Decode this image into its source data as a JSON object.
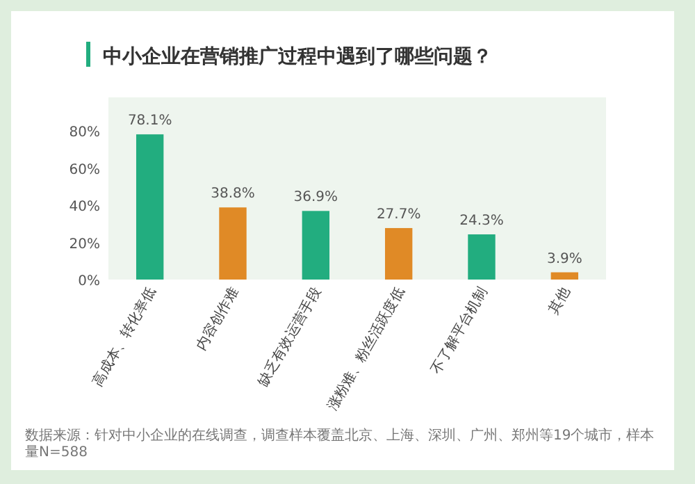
{
  "chart_data": {
    "type": "bar",
    "title": "中小企业在营销推广过程中遇到了哪些问题？",
    "categories": [
      "高成本、转化率低",
      "内容创作难",
      "缺乏有效运营手段",
      "涨粉难、粉丝活跃度低",
      "不了解平台机制",
      "其他"
    ],
    "values": [
      78.1,
      38.8,
      36.9,
      27.7,
      24.3,
      3.9
    ],
    "colors": [
      "#22ad7f",
      "#e08a26",
      "#22ad7f",
      "#e08a26",
      "#22ad7f",
      "#e08a26"
    ],
    "value_labels": [
      "78.1%",
      "38.8%",
      "36.9%",
      "27.7%",
      "24.3%",
      "3.9%"
    ],
    "ylim": [
      0,
      98
    ],
    "yticks": [
      {
        "value": 0,
        "label": "0%"
      },
      {
        "value": 20,
        "label": "20%"
      },
      {
        "value": 40,
        "label": "40%"
      },
      {
        "value": 60,
        "label": "60%"
      },
      {
        "value": 80,
        "label": "80%"
      }
    ],
    "grid": false,
    "annotations": [
      "数据来源：针对中小企业的在线调查，调查样本覆盖北京、上海、深圳、广州、郑州等19个城市，样本量N=588"
    ]
  }
}
